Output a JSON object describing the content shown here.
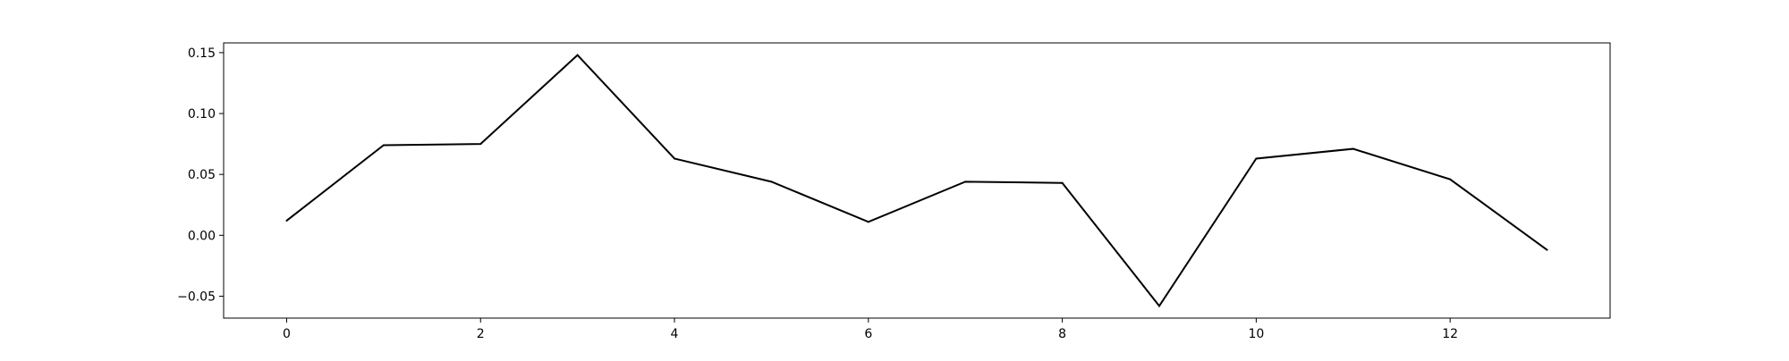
{
  "chart_data": {
    "type": "line",
    "title": "",
    "xlabel": "",
    "ylabel": "",
    "x": [
      0,
      1,
      2,
      3,
      4,
      5,
      6,
      7,
      8,
      9,
      10,
      11,
      12,
      13
    ],
    "series": [
      {
        "values": [
          0.012,
          0.074,
          0.075,
          0.148,
          0.063,
          0.044,
          0.011,
          0.044,
          0.043,
          -0.058,
          0.063,
          0.071,
          0.046,
          -0.012
        ]
      }
    ],
    "xlim": [
      -0.65,
      13.65
    ],
    "ylim": [
      -0.068,
      0.158
    ],
    "xticks": [
      0,
      2,
      4,
      6,
      8,
      10,
      12
    ],
    "xtick_labels": [
      "0",
      "2",
      "4",
      "6",
      "8",
      "10",
      "12"
    ],
    "yticks": [
      -0.05,
      0.0,
      0.05,
      0.1,
      0.15
    ],
    "ytick_labels": [
      "−0.05",
      "0.00",
      "0.05",
      "0.10",
      "0.15"
    ],
    "grid": false,
    "line_color": "#000000"
  }
}
